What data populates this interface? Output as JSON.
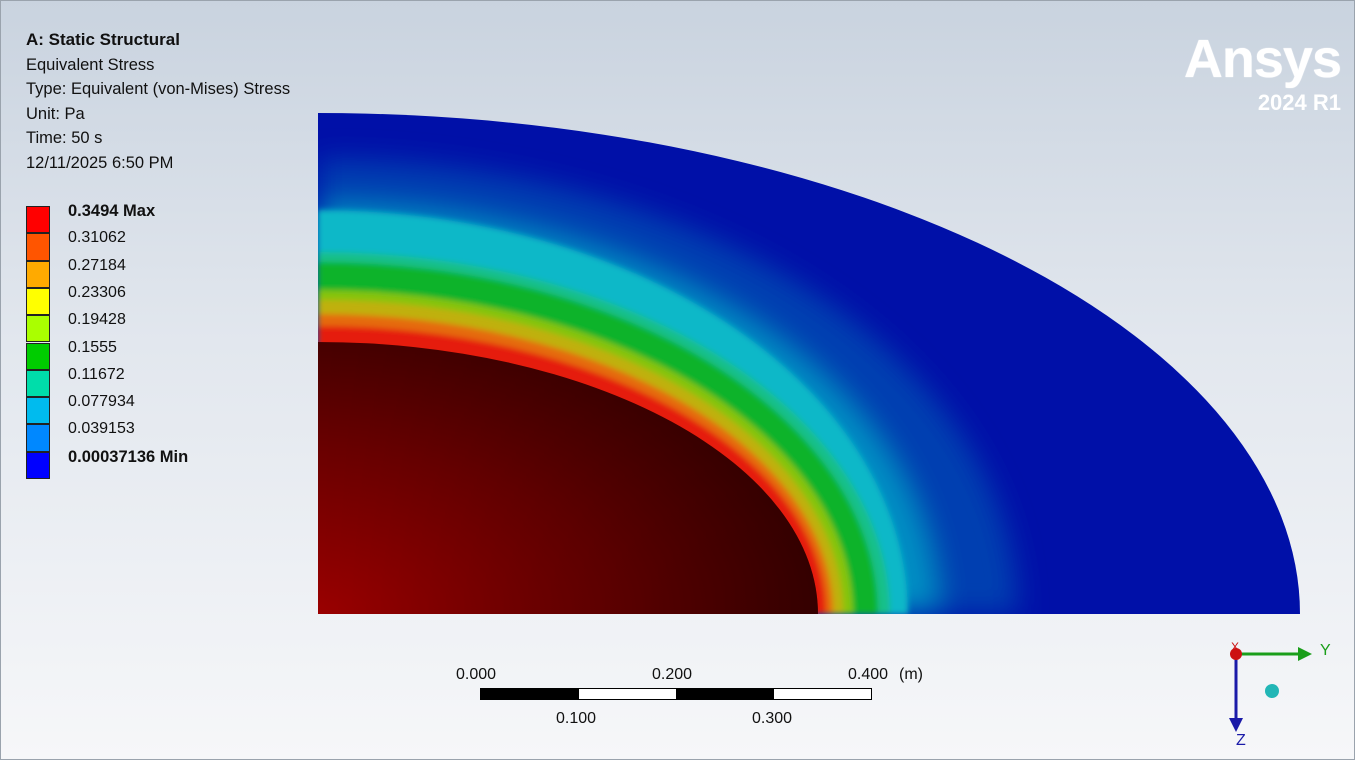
{
  "info": {
    "title": "A: Static Structural",
    "result": "Equivalent Stress",
    "type": "Type: Equivalent (von-Mises) Stress",
    "unit": "Unit: Pa",
    "time": "Time: 50 s",
    "timestamp": "12/11/2025 6:50 PM"
  },
  "legend": {
    "entries": [
      {
        "label": "0.3494 Max",
        "color": "#ff0000",
        "bold": true
      },
      {
        "label": "0.31062",
        "color": "#ff5500",
        "bold": false
      },
      {
        "label": "0.27184",
        "color": "#ffaa00",
        "bold": false
      },
      {
        "label": "0.23306",
        "color": "#ffff00",
        "bold": false
      },
      {
        "label": "0.19428",
        "color": "#aaff00",
        "bold": false
      },
      {
        "label": "0.1555",
        "color": "#00cc00",
        "bold": false
      },
      {
        "label": "0.11672",
        "color": "#00ddaa",
        "bold": false
      },
      {
        "label": "0.077934",
        "color": "#00bbee",
        "bold": false
      },
      {
        "label": "0.039153",
        "color": "#0088ff",
        "bold": false
      },
      {
        "label": "0.00037136 Min",
        "color": "#0000ff",
        "bold": true
      }
    ]
  },
  "logo": {
    "name": "Ansys",
    "version": "2024 R1"
  },
  "scale_bar": {
    "top_labels": [
      "0.000",
      "0.200",
      "0.400"
    ],
    "bottom_labels": [
      "0.100",
      "0.300"
    ],
    "unit": "(m)"
  },
  "triad": {
    "y_axis": "Y",
    "z_axis": "Z",
    "x_axis": "X",
    "y_color": "#1a9e1a",
    "z_color": "#1a1aa8",
    "x_color": "#cc1111"
  }
}
